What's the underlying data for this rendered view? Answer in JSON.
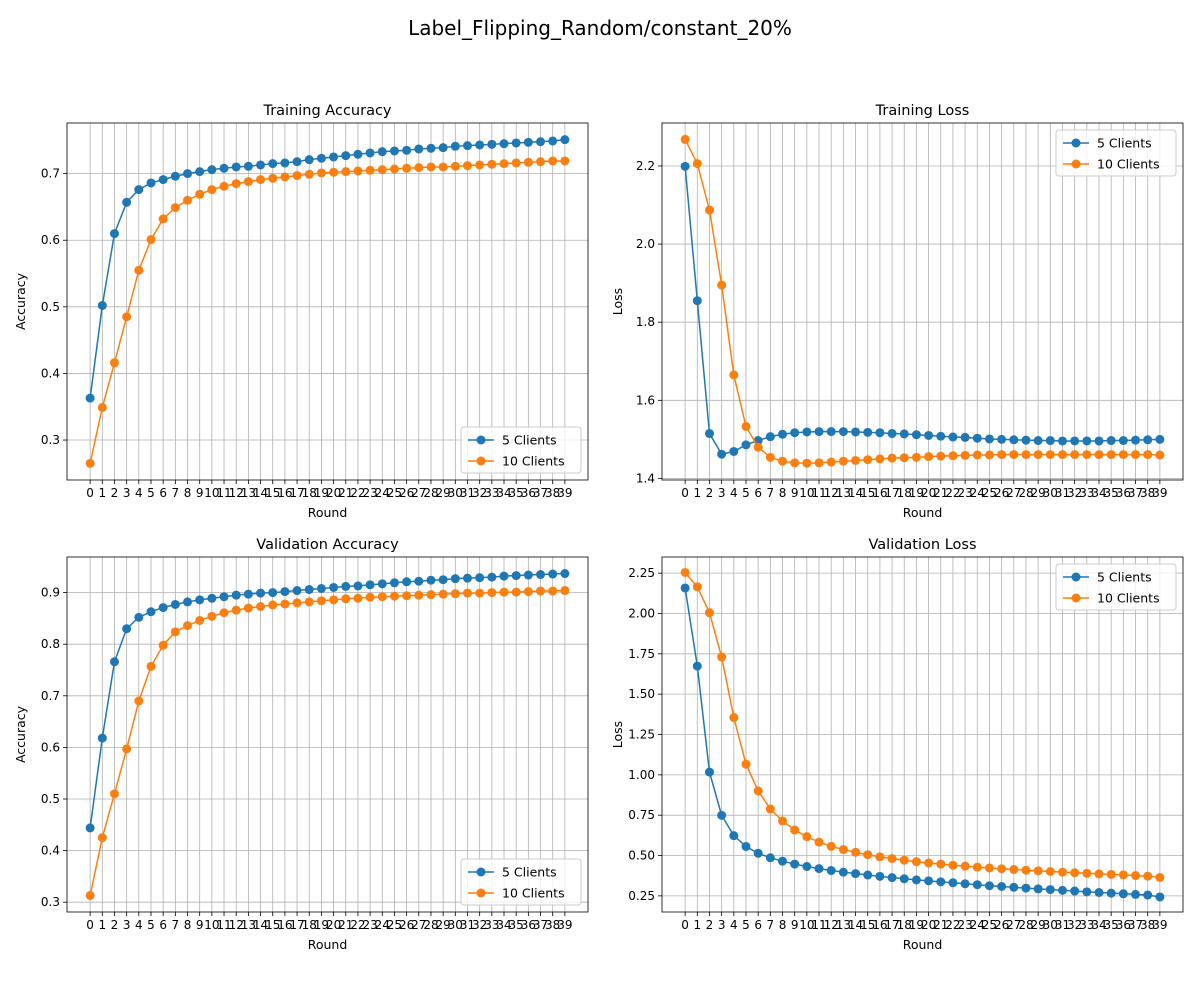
{
  "figure": {
    "suptitle": "Label_Flipping_Random/constant_20%"
  },
  "chart_data": [
    {
      "type": "line",
      "title": "Training Accuracy",
      "xlabel": "Round",
      "ylabel": "Accuracy",
      "x": [
        0,
        1,
        2,
        3,
        4,
        5,
        6,
        7,
        8,
        9,
        10,
        11,
        12,
        13,
        14,
        15,
        16,
        17,
        18,
        19,
        20,
        21,
        22,
        23,
        24,
        25,
        26,
        27,
        28,
        29,
        30,
        31,
        32,
        33,
        34,
        35,
        36,
        37,
        38,
        39
      ],
      "ylim": [
        0.24,
        0.776
      ],
      "yticks": [
        0.3,
        0.4,
        0.5,
        0.6,
        0.7
      ],
      "ytick_labels": [
        "0.3",
        "0.4",
        "0.5",
        "0.6",
        "0.7"
      ],
      "grid": true,
      "legend_position": "lower right",
      "series": [
        {
          "name": "5 Clients",
          "color": "#1f77b4",
          "values": [
            0.363,
            0.502,
            0.61,
            0.657,
            0.676,
            0.686,
            0.691,
            0.696,
            0.7,
            0.703,
            0.706,
            0.708,
            0.71,
            0.711,
            0.713,
            0.715,
            0.716,
            0.718,
            0.721,
            0.723,
            0.725,
            0.727,
            0.729,
            0.731,
            0.733,
            0.734,
            0.735,
            0.737,
            0.738,
            0.739,
            0.741,
            0.742,
            0.743,
            0.744,
            0.745,
            0.746,
            0.747,
            0.748,
            0.749,
            0.751
          ]
        },
        {
          "name": "10 Clients",
          "color": "#ff7f0e",
          "values": [
            0.265,
            0.349,
            0.416,
            0.485,
            0.555,
            0.601,
            0.632,
            0.649,
            0.66,
            0.669,
            0.676,
            0.681,
            0.685,
            0.688,
            0.691,
            0.693,
            0.695,
            0.697,
            0.699,
            0.701,
            0.702,
            0.703,
            0.704,
            0.705,
            0.706,
            0.707,
            0.708,
            0.709,
            0.71,
            0.71,
            0.711,
            0.712,
            0.713,
            0.714,
            0.715,
            0.716,
            0.717,
            0.718,
            0.719,
            0.719
          ]
        }
      ]
    },
    {
      "type": "line",
      "title": "Training Loss",
      "xlabel": "Round",
      "ylabel": "Loss",
      "x": [
        0,
        1,
        2,
        3,
        4,
        5,
        6,
        7,
        8,
        9,
        10,
        11,
        12,
        13,
        14,
        15,
        16,
        17,
        18,
        19,
        20,
        21,
        22,
        23,
        24,
        25,
        26,
        27,
        28,
        29,
        30,
        31,
        32,
        33,
        34,
        35,
        36,
        37,
        38,
        39
      ],
      "ylim": [
        1.396,
        2.31
      ],
      "yticks": [
        1.4,
        1.6,
        1.8,
        2.0,
        2.2
      ],
      "ytick_labels": [
        "1.4",
        "1.6",
        "1.8",
        "2.0",
        "2.2"
      ],
      "grid": true,
      "legend_position": "upper right",
      "series": [
        {
          "name": "5 Clients",
          "color": "#1f77b4",
          "values": [
            2.199,
            1.855,
            1.515,
            1.462,
            1.469,
            1.486,
            1.497,
            1.507,
            1.513,
            1.517,
            1.519,
            1.52,
            1.52,
            1.52,
            1.519,
            1.518,
            1.517,
            1.515,
            1.514,
            1.512,
            1.51,
            1.508,
            1.506,
            1.505,
            1.503,
            1.501,
            1.5,
            1.499,
            1.498,
            1.497,
            1.497,
            1.496,
            1.496,
            1.496,
            1.496,
            1.497,
            1.497,
            1.498,
            1.499,
            1.5
          ]
        },
        {
          "name": "10 Clients",
          "color": "#ff7f0e",
          "values": [
            2.268,
            2.206,
            2.087,
            1.895,
            1.665,
            1.533,
            1.48,
            1.454,
            1.444,
            1.44,
            1.439,
            1.44,
            1.442,
            1.444,
            1.446,
            1.448,
            1.45,
            1.452,
            1.453,
            1.454,
            1.456,
            1.457,
            1.458,
            1.459,
            1.46,
            1.46,
            1.461,
            1.461,
            1.461,
            1.461,
            1.461,
            1.461,
            1.461,
            1.461,
            1.461,
            1.461,
            1.461,
            1.461,
            1.461,
            1.46
          ]
        }
      ]
    },
    {
      "type": "line",
      "title": "Validation Accuracy",
      "xlabel": "Round",
      "ylabel": "Accuracy",
      "x": [
        0,
        1,
        2,
        3,
        4,
        5,
        6,
        7,
        8,
        9,
        10,
        11,
        12,
        13,
        14,
        15,
        16,
        17,
        18,
        19,
        20,
        21,
        22,
        23,
        24,
        25,
        26,
        27,
        28,
        29,
        30,
        31,
        32,
        33,
        34,
        35,
        36,
        37,
        38,
        39
      ],
      "ylim": [
        0.281,
        0.969
      ],
      "yticks": [
        0.3,
        0.4,
        0.5,
        0.6,
        0.7,
        0.8,
        0.9
      ],
      "ytick_labels": [
        "0.3",
        "0.4",
        "0.5",
        "0.6",
        "0.7",
        "0.8",
        "0.9"
      ],
      "grid": true,
      "legend_position": "lower right",
      "series": [
        {
          "name": "5 Clients",
          "color": "#1f77b4",
          "values": [
            0.444,
            0.618,
            0.766,
            0.83,
            0.852,
            0.863,
            0.871,
            0.877,
            0.882,
            0.886,
            0.889,
            0.892,
            0.895,
            0.897,
            0.899,
            0.9,
            0.902,
            0.904,
            0.906,
            0.908,
            0.91,
            0.912,
            0.913,
            0.915,
            0.917,
            0.919,
            0.921,
            0.922,
            0.924,
            0.925,
            0.927,
            0.928,
            0.929,
            0.93,
            0.932,
            0.933,
            0.934,
            0.935,
            0.936,
            0.937
          ]
        },
        {
          "name": "10 Clients",
          "color": "#ff7f0e",
          "values": [
            0.313,
            0.425,
            0.51,
            0.597,
            0.69,
            0.757,
            0.798,
            0.824,
            0.836,
            0.846,
            0.854,
            0.861,
            0.866,
            0.87,
            0.873,
            0.876,
            0.878,
            0.88,
            0.882,
            0.884,
            0.886,
            0.888,
            0.889,
            0.891,
            0.892,
            0.893,
            0.894,
            0.895,
            0.896,
            0.897,
            0.898,
            0.899,
            0.899,
            0.9,
            0.901,
            0.901,
            0.902,
            0.903,
            0.903,
            0.904
          ]
        }
      ]
    },
    {
      "type": "line",
      "title": "Validation Loss",
      "xlabel": "Round",
      "ylabel": "Loss",
      "x": [
        0,
        1,
        2,
        3,
        4,
        5,
        6,
        7,
        8,
        9,
        10,
        11,
        12,
        13,
        14,
        15,
        16,
        17,
        18,
        19,
        20,
        21,
        22,
        23,
        24,
        25,
        26,
        27,
        28,
        29,
        30,
        31,
        32,
        33,
        34,
        35,
        36,
        37,
        38,
        39
      ],
      "ylim": [
        0.15,
        2.35
      ],
      "yticks": [
        0.25,
        0.5,
        0.75,
        1.0,
        1.25,
        1.5,
        1.75,
        2.0,
        2.25
      ],
      "ytick_labels": [
        "0.25",
        "0.50",
        "0.75",
        "1.00",
        "1.25",
        "1.50",
        "1.75",
        "2.00",
        "2.25"
      ],
      "grid": true,
      "legend_position": "upper right",
      "series": [
        {
          "name": "5 Clients",
          "color": "#1f77b4",
          "values": [
            2.158,
            1.674,
            1.017,
            0.749,
            0.623,
            0.556,
            0.514,
            0.486,
            0.465,
            0.447,
            0.432,
            0.419,
            0.407,
            0.397,
            0.388,
            0.379,
            0.371,
            0.363,
            0.356,
            0.349,
            0.343,
            0.337,
            0.331,
            0.325,
            0.319,
            0.313,
            0.308,
            0.303,
            0.298,
            0.293,
            0.289,
            0.284,
            0.28,
            0.275,
            0.271,
            0.267,
            0.263,
            0.259,
            0.255,
            0.243
          ]
        },
        {
          "name": "10 Clients",
          "color": "#ff7f0e",
          "values": [
            2.254,
            2.165,
            2.005,
            1.73,
            1.355,
            1.066,
            0.9,
            0.788,
            0.714,
            0.658,
            0.617,
            0.583,
            0.557,
            0.537,
            0.52,
            0.505,
            0.492,
            0.481,
            0.471,
            0.462,
            0.454,
            0.447,
            0.44,
            0.434,
            0.428,
            0.423,
            0.418,
            0.413,
            0.409,
            0.405,
            0.401,
            0.397,
            0.393,
            0.39,
            0.386,
            0.383,
            0.38,
            0.376,
            0.372,
            0.364
          ]
        }
      ]
    }
  ]
}
